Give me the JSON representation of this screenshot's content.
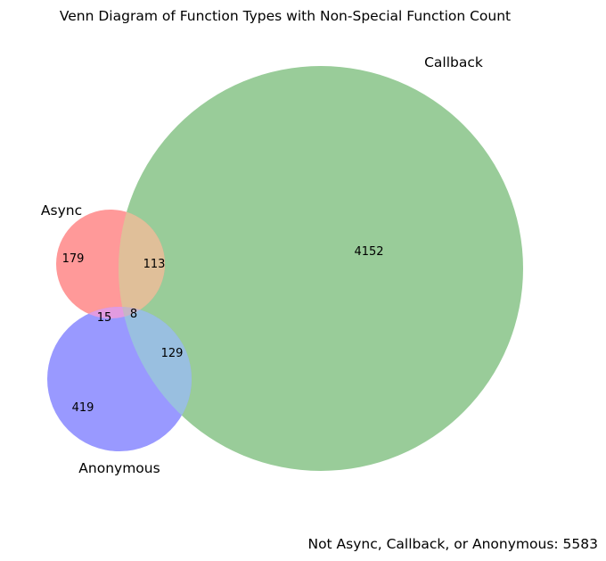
{
  "title": "Venn Diagram of Function Types with Non-Special Function Count",
  "sets": [
    {
      "id": "async",
      "label": "Async",
      "color": "#ff6666"
    },
    {
      "id": "callback",
      "label": "Callback",
      "color": "#66b366"
    },
    {
      "id": "anonymous",
      "label": "Anonymous",
      "color": "#6666ff"
    }
  ],
  "regions": {
    "async_only": "179",
    "async_callback": "113",
    "async_anonymous": "15",
    "all_three": "8",
    "callback_only": "4152",
    "callback_anonymous": "129",
    "anonymous_only": "419"
  },
  "colors": {
    "async_only": "#ff9999",
    "callback_only": "#99cc99",
    "anonymous_only": "#9999ff",
    "async_callback": "#e0bf99",
    "async_anonymous": "#e29be0",
    "callback_anonymous": "#99bfe0",
    "all_three": "#c6b5c6"
  },
  "footer": "Not Async, Callback, or Anonymous: 5583"
}
